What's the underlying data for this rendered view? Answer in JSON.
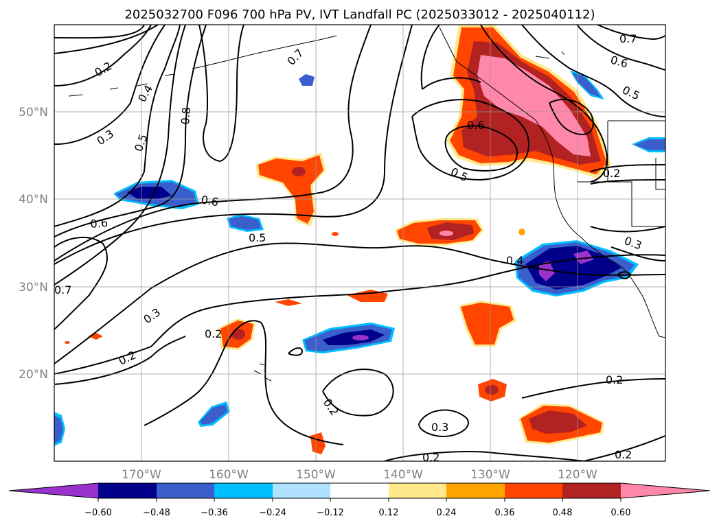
{
  "title": "2025032700 F096 700 hPa PV, IVT Landfall PC (2025033012 - 2025040112)",
  "map": {
    "lon_range": [
      -180,
      -110
    ],
    "lat_range": [
      10,
      60
    ],
    "lon_ticks": [
      "170°W",
      "160°W",
      "150°W",
      "140°W",
      "130°W",
      "120°W"
    ],
    "lat_ticks": [
      "20°N",
      "30°N",
      "40°N",
      "50°N"
    ],
    "gridlines": true,
    "projection": "PlateCarree"
  },
  "contours": {
    "variable": "700 hPa PV",
    "color": "#000000",
    "labels": [
      "0.2",
      "0.4",
      "0.3",
      "0.5",
      "0.8",
      "0.7",
      "0.6",
      "0.6",
      "0.7",
      "0.6",
      "0.5",
      "0.5",
      "0.6",
      "0.5",
      "0.2",
      "0.3",
      "0.4",
      "0.7",
      "0.3",
      "0.2",
      "0.2",
      "0.2",
      "0.3",
      "0.2",
      "0.2",
      "0.2"
    ]
  },
  "colorbar": {
    "ticks": [
      "−0.60",
      "−0.48",
      "−0.36",
      "−0.24",
      "−0.12",
      "0.12",
      "0.24",
      "0.36",
      "0.48",
      "0.60"
    ],
    "colors": [
      "#9932cc",
      "#00008b",
      "#3a5fcd",
      "#00bfff",
      "#b0e2ff",
      "#ffffff",
      "#ffe98a",
      "#ffa500",
      "#ff4500",
      "#b22222",
      "#ff88aa"
    ],
    "extend": "both"
  },
  "chart_data": {
    "type": "contour-map",
    "title": "2025032700 F096 700 hPa PV, IVT Landfall PC (2025033012 - 2025040112)",
    "levels": [
      -0.6,
      -0.48,
      -0.36,
      -0.24,
      -0.12,
      0.12,
      0.24,
      0.36,
      0.48,
      0.6
    ],
    "shaded_features": [
      {
        "name": "positive max",
        "lon": -125,
        "lat": 52,
        "value": 0.6
      },
      {
        "name": "positive",
        "lon": -130,
        "lat": 46,
        "value": 0.5
      },
      {
        "name": "positive",
        "lon": -151,
        "lat": 42,
        "value": 0.45
      },
      {
        "name": "positive",
        "lon": -137,
        "lat": 36,
        "value": 0.55
      },
      {
        "name": "positive",
        "lon": -122,
        "lat": 14,
        "value": 0.5
      },
      {
        "name": "positive",
        "lon": -130,
        "lat": 26,
        "value": 0.4
      },
      {
        "name": "positive",
        "lon": -160,
        "lat": 24,
        "value": 0.45
      },
      {
        "name": "positive",
        "lon": -131,
        "lat": 18,
        "value": 0.45
      },
      {
        "name": "negative min",
        "lon": -122,
        "lat": 32,
        "value": -0.65
      },
      {
        "name": "negative",
        "lon": -144,
        "lat": 23,
        "value": -0.6
      },
      {
        "name": "negative",
        "lon": -170,
        "lat": 40,
        "value": -0.5
      },
      {
        "name": "negative",
        "lon": -157,
        "lat": 38,
        "value": -0.36
      },
      {
        "name": "negative",
        "lon": -163,
        "lat": 15,
        "value": -0.36
      }
    ]
  }
}
